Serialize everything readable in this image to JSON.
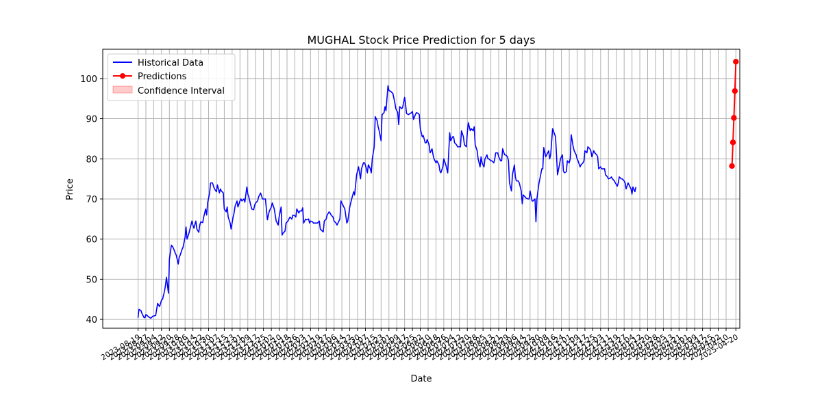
{
  "chart_data": {
    "type": "line",
    "title": "MUGHAL Stock Price Prediction for 5 days",
    "xlabel": "Date",
    "ylabel": "Price",
    "ylim": [
      37.8,
      107.3
    ],
    "yticks": [
      40,
      50,
      60,
      70,
      80,
      90,
      100
    ],
    "grid": true,
    "legend_position": "top-left",
    "xaxis_note": "x tick labels are densely overlapping dates, many illegible",
    "xtick_labels_visible": [
      "2023-08-19",
      "2025-04-20"
    ],
    "series": [
      {
        "name": "Historical Data",
        "color": "#0000ff",
        "marker": "none",
        "start_date": "2023-08-19",
        "values": [
          40.4,
          42.5,
          42.2,
          41.5,
          40.5,
          40.4,
          41.2,
          40.8,
          40.6,
          40.3,
          40.5,
          40.8,
          40.9,
          41.0,
          44.0,
          43.5,
          43.2,
          44.8,
          45.0,
          47.0,
          48.5,
          50.5,
          46.5,
          55.0,
          58.5,
          58.2,
          57.8,
          56.5,
          56.0,
          53.8,
          55.5,
          56.0,
          57.5,
          58.0,
          60.5,
          63.0,
          60.0,
          61.5,
          62.5,
          64.5,
          63.5,
          62.7,
          64.5,
          62.5,
          61.7,
          63.5,
          64.3,
          64.1,
          65.5,
          67.5,
          66.0,
          69.0,
          71.5,
          74.0,
          74.0,
          73.2,
          72.5,
          71.8,
          73.5,
          71.5,
          72.5,
          72.0,
          71.5,
          67.5,
          66.8,
          68.0,
          65.5,
          64.0,
          62.5,
          65.5,
          66.5,
          68.2,
          69.5,
          68.0,
          69.5,
          70.0,
          69.5,
          70.0,
          69.2,
          73.0,
          71.2,
          70.5,
          68.5,
          67.5,
          67.3,
          68.5,
          69.0,
          69.5,
          70.5,
          71.5,
          70.8,
          70.0,
          70.0,
          70.0,
          64.8,
          66.0,
          67.0,
          68.0,
          69.0,
          67.5,
          66.0,
          64.5,
          63.5,
          65.5,
          68.0,
          61.0,
          61.5,
          62.0,
          64.0,
          64.5,
          65.0,
          65.5,
          65.0,
          66.0,
          65.8,
          65.5,
          67.5,
          66.5,
          67.0,
          67.0,
          67.8,
          64.0,
          65.0,
          64.8,
          65.0,
          64.0,
          64.5,
          64.3,
          64.0,
          64.0,
          64.0,
          64.0,
          64.5,
          62.5,
          62.0,
          61.8,
          64.5,
          65.0,
          66.0,
          66.8,
          66.5,
          66.0,
          65.5,
          64.5,
          64.0,
          63.5,
          64.0,
          65.0,
          69.5,
          68.5,
          68.0,
          67.5,
          64.0,
          64.5,
          68.0,
          69.0,
          70.0,
          71.8,
          71.0,
          76.0,
          77.0,
          78.0,
          75.0,
          77.5,
          79.0,
          79.0,
          78.5,
          76.5,
          78.5,
          77.5,
          76.5,
          80.0,
          83.0,
          90.5,
          89.5,
          88.0,
          87.0,
          84.5,
          91.0,
          91.5,
          93.0,
          92.0,
          98.2,
          97.0,
          96.8,
          96.5,
          96.3,
          94.0,
          92.5,
          91.5,
          88.5,
          93.0,
          92.5,
          92.8,
          95.3,
          93.5,
          91.3,
          91.0,
          91.2,
          91.5,
          91.8,
          89.8,
          91.0,
          91.5,
          91.3,
          91.0,
          87.5,
          85.5,
          85.8,
          84.0,
          84.0,
          84.8,
          83.5,
          81.5,
          82.5,
          81.0,
          80.0,
          79.0,
          79.5,
          78.5,
          77.0,
          76.5,
          78.0,
          80.0,
          78.5,
          77.5,
          76.5,
          86.5,
          84.5,
          85.5,
          85.5,
          84.0,
          83.5,
          83.0,
          83.0,
          83.0,
          87.0,
          85.5,
          83.5,
          83.0,
          86.5,
          89.0,
          87.0,
          87.5,
          87.0,
          88.0,
          83.5,
          82.0,
          80.0,
          78.0,
          80.5,
          79.0,
          78.0,
          80.0,
          81.0,
          80.0,
          80.0,
          79.5,
          79.5,
          79.0,
          80.0,
          81.5,
          81.5,
          80.5,
          79.5,
          79.5,
          82.5,
          81.0,
          81.0,
          80.5,
          79.5,
          74.0,
          72.0,
          76.0,
          78.5,
          75.5,
          74.5,
          74.5,
          74.0,
          72.0,
          68.8,
          71.0,
          70.5,
          70.2,
          70.0,
          70.0,
          72.0,
          69.5,
          69.5,
          70.0,
          64.3,
          70.0,
          73.8,
          75.0,
          77.5,
          77.5,
          82.8,
          80.5,
          81.0,
          82.0,
          80.0,
          81.0,
          87.5,
          86.8,
          85.5,
          81.0,
          76.0,
          78.5,
          80.0,
          81.0,
          77.0,
          76.5,
          76.8,
          79.5,
          79.0,
          80.0,
          86.0,
          83.0,
          82.0,
          81.0,
          80.0,
          79.5,
          78.0,
          78.5,
          79.0,
          79.5,
          82.0,
          81.5,
          83.0,
          82.5,
          82.0,
          80.5,
          82.0,
          81.5,
          81.0,
          80.5,
          77.5,
          78.0,
          77.5,
          77.5,
          77.5,
          76.0,
          75.5,
          75.0,
          75.2,
          75.5,
          75.0,
          74.5,
          74.0,
          73.2,
          74.0,
          75.5,
          75.0,
          75.0,
          74.5,
          74.0,
          72.5,
          74.0,
          73.5,
          72.5,
          71.2,
          73.0,
          71.8,
          73.0
        ]
      },
      {
        "name": "Predictions",
        "color": "#ff0000",
        "marker": "circle",
        "start_date": "2025-04-16",
        "values": [
          78.2,
          84.1,
          90.2,
          96.9,
          104.2
        ]
      }
    ],
    "confidence_interval": {
      "name": "Confidence Interval",
      "color": "#ff0000",
      "opacity": 0.2
    }
  }
}
